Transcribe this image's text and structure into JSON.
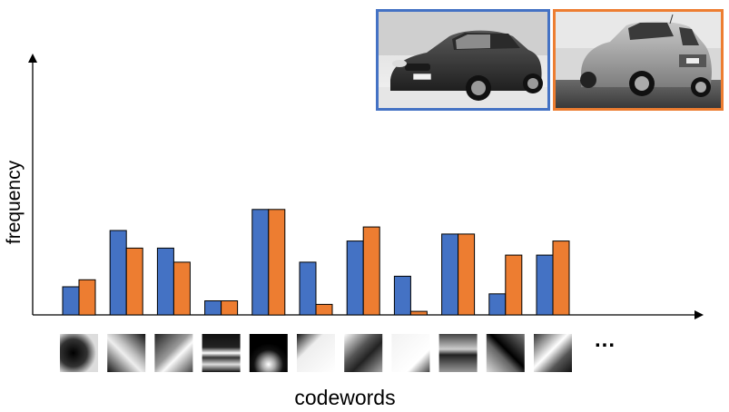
{
  "labels": {
    "y_axis": "frequency",
    "x_axis": "codewords",
    "more": "..."
  },
  "colors": {
    "series_a": "#4472C4",
    "series_b": "#ED7D31"
  },
  "photos": [
    {
      "name": "sedan-photo",
      "subject": "dark gray sedan, front three-quarter view",
      "frame_color": "#4472C4"
    },
    {
      "name": "suv-photo",
      "subject": "silver crossover SUV, rear three-quarter view",
      "frame_color": "#ED7D31"
    }
  ],
  "chart_data": {
    "type": "bar",
    "categories": [
      "",
      "",
      "",
      "",
      "",
      "",
      "",
      "",
      "",
      "",
      ""
    ],
    "series": [
      {
        "values": [
          2,
          6,
          4.75,
          1,
          7.5,
          3.75,
          5.25,
          2.75,
          5.75,
          1.5,
          4.25
        ]
      },
      {
        "values": [
          2.5,
          4.75,
          3.75,
          1,
          7.5,
          0.75,
          6.25,
          0.25,
          5.75,
          4.25,
          5.25
        ]
      }
    ],
    "ylim": [
      0,
      9.75
    ],
    "grid": false,
    "legend": "none"
  },
  "patches": [
    {
      "name": "codeword-patch-1",
      "pattern": "dark-vertical-edge"
    },
    {
      "name": "codeword-patch-2",
      "pattern": "diagonal-bar"
    },
    {
      "name": "codeword-patch-3",
      "pattern": "diagonal-edge"
    },
    {
      "name": "codeword-patch-4",
      "pattern": "horizontal-stripes"
    },
    {
      "name": "codeword-patch-5",
      "pattern": "bright-bottom-blob"
    },
    {
      "name": "codeword-patch-6",
      "pattern": "corner-edge"
    },
    {
      "name": "codeword-patch-7",
      "pattern": "diagonal-gradient"
    },
    {
      "name": "codeword-patch-8",
      "pattern": "light-flat"
    },
    {
      "name": "codeword-patch-9",
      "pattern": "horizontal-blur"
    },
    {
      "name": "codeword-patch-10",
      "pattern": "dark-diagonal"
    },
    {
      "name": "codeword-patch-11",
      "pattern": "diagonal-ridge"
    }
  ]
}
